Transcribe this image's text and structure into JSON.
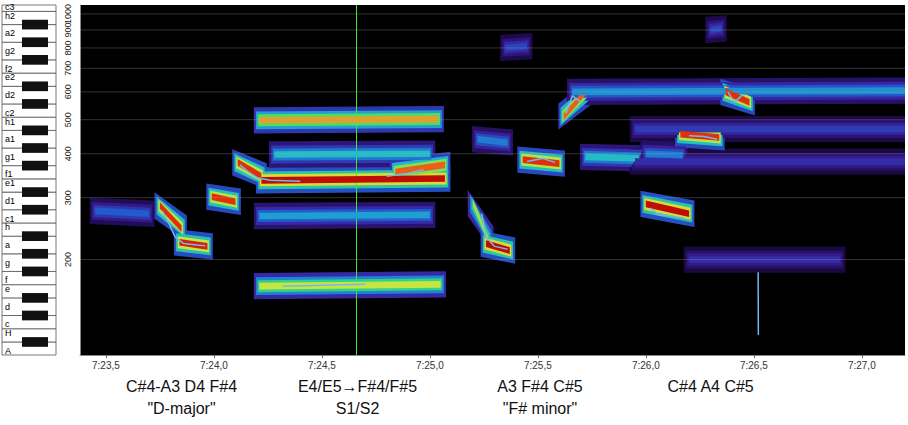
{
  "chart_data": {
    "type": "spectrogram",
    "log": "y",
    "grid": true,
    "xlim": [
      443.38,
      447.2
    ],
    "xticks": [
      {
        "value": 443.5,
        "label": "7:23,5"
      },
      {
        "value": 444.0,
        "label": "7:24,0"
      },
      {
        "value": 444.5,
        "label": "7:24,5"
      },
      {
        "value": 445.0,
        "label": "7:25,0"
      },
      {
        "value": 445.5,
        "label": "7:25,5"
      },
      {
        "value": 446.0,
        "label": "7:26,0"
      },
      {
        "value": 446.5,
        "label": "7:26,5"
      },
      {
        "value": 447.0,
        "label": "7:27,0"
      }
    ],
    "ylim": [
      107,
      1060
    ],
    "yticks": [
      200,
      300,
      400,
      500,
      600,
      700,
      800,
      900,
      1000
    ],
    "y2lim": [
      107,
      1060
    ],
    "y2ticks": [
      {
        "value": 110,
        "label": "A"
      },
      {
        "value": 123.47,
        "label": "H"
      },
      {
        "value": 130.81,
        "label": "c"
      },
      {
        "value": 146.83,
        "label": "d"
      },
      {
        "value": 164.81,
        "label": "e"
      },
      {
        "value": 174.61,
        "label": "f"
      },
      {
        "value": 196,
        "label": "g"
      },
      {
        "value": 220,
        "label": "a"
      },
      {
        "value": 246.94,
        "label": "h"
      },
      {
        "value": 261.63,
        "label": "c1"
      },
      {
        "value": 293.66,
        "label": "d1"
      },
      {
        "value": 329.63,
        "label": "e1"
      },
      {
        "value": 349.23,
        "label": "f1"
      },
      {
        "value": 392,
        "label": "g1"
      },
      {
        "value": 440,
        "label": "a1"
      },
      {
        "value": 493.88,
        "label": "h1"
      },
      {
        "value": 523.25,
        "label": "c2"
      },
      {
        "value": 587.33,
        "label": "d2"
      },
      {
        "value": 659.26,
        "label": "e2"
      },
      {
        "value": 698.46,
        "label": "f2"
      },
      {
        "value": 783.99,
        "label": "g2"
      },
      {
        "value": 880,
        "label": "a2"
      },
      {
        "value": 987.77,
        "label": "h2"
      },
      {
        "value": 1046.5,
        "label": "c3"
      }
    ],
    "zlim": [
      0,
      1
    ],
    "tones": [
      {
        "t": [
          443.45,
          443.7
        ],
        "f": [
          275,
          270
        ],
        "level": 0.4
      },
      {
        "t": [
          443.75,
          443.85
        ],
        "f": [
          285,
          245
        ],
        "level": 0.95
      },
      {
        "t": [
          443.84,
          443.97
        ],
        "f": [
          224,
          218
        ],
        "level": 0.97
      },
      {
        "t": [
          443.99,
          444.1
        ],
        "f": [
          302,
          292
        ],
        "level": 0.95
      },
      {
        "t": [
          444.11,
          444.22
        ],
        "f": [
          378,
          345
        ],
        "level": 0.95
      },
      {
        "t": [
          444.21,
          445.05
        ],
        "f": [
          168,
          170
        ],
        "level": 0.78
      },
      {
        "t": [
          444.21,
          445.0
        ],
        "f": [
          266,
          268
        ],
        "level": 0.5
      },
      {
        "t": [
          444.22,
          445.07
        ],
        "f": [
          336,
          340
        ],
        "level": 1.0
      },
      {
        "t": [
          444.28,
          445.0
        ],
        "f": [
          398,
          400
        ],
        "level": 0.55
      },
      {
        "t": [
          444.21,
          445.04
        ],
        "f": [
          498,
          502
        ],
        "level": 0.85
      },
      {
        "t": [
          444.84,
          445.07
        ],
        "f": [
          355,
          372
        ],
        "level": 0.9
      },
      {
        "t": [
          445.2,
          445.27
        ],
        "f": [
          290,
          228
        ],
        "level": 0.75
      },
      {
        "t": [
          445.26,
          445.37
        ],
        "f": [
          222,
          212
        ],
        "level": 1.0
      },
      {
        "t": [
          445.22,
          445.36
        ],
        "f": [
          440,
          430
        ],
        "level": 0.45
      },
      {
        "t": [
          445.43,
          445.6
        ],
        "f": [
          385,
          375
        ],
        "level": 0.95
      },
      {
        "t": [
          445.35,
          445.45
        ],
        "f": [
          800,
          810
        ],
        "level": 0.35
      },
      {
        "t": [
          445.62,
          445.72
        ],
        "f": [
          510,
          600
        ],
        "level": 0.9
      },
      {
        "t": [
          445.66,
          447.2
        ],
        "f": [
          600,
          605
        ],
        "level": 0.48
      },
      {
        "t": [
          445.72,
          445.97
        ],
        "f": [
          392,
          388
        ],
        "level": 0.55
      },
      {
        "t": [
          445.95,
          447.2
        ],
        "f": [
          470,
          470
        ],
        "level": 0.33
      },
      {
        "t": [
          445.95,
          447.2
        ],
        "f": [
          380,
          380
        ],
        "level": 0.3
      },
      {
        "t": [
          446.0,
          446.2
        ],
        "f": [
          288,
          270
        ],
        "level": 1.0
      },
      {
        "t": [
          446.0,
          446.17
        ],
        "f": [
          400,
          396
        ],
        "level": 0.45
      },
      {
        "t": [
          446.16,
          446.34
        ],
        "f": [
          455,
          445
        ],
        "level": 0.95
      },
      {
        "t": [
          446.3,
          446.35
        ],
        "f": [
          900,
          910
        ],
        "level": 0.35
      },
      {
        "t": [
          446.37,
          446.48
        ],
        "f": [
          600,
          560
        ],
        "level": 0.95
      },
      {
        "t": [
          446.2,
          446.9
        ],
        "f": [
          200,
          200
        ],
        "level": 0.3
      }
    ],
    "pitch_track": {
      "color": "#72b8f0",
      "x": [
        443.76,
        443.79,
        443.82,
        443.86,
        443.92,
        443.96,
        null,
        444.12,
        444.16,
        444.2,
        444.26,
        444.4,
        null,
        444.32,
        444.5,
        444.7,
        null,
        444.8,
        444.9,
        444.97,
        null,
        445.24,
        445.26,
        445.3,
        445.36,
        null,
        445.45,
        445.52,
        445.58,
        null,
        445.63,
        445.66,
        445.7,
        null,
        446.02,
        446.06,
        446.12,
        446.18,
        null,
        446.2,
        446.27,
        446.33,
        null,
        446.38,
        446.41,
        446.45,
        null,
        446.52,
        446.521
      ],
      "y": [
        275,
        255,
        232,
        222,
        220,
        219,
        null,
        372,
        355,
        342,
        336,
        334,
        null,
        168,
        169,
        170,
        null,
        345,
        352,
        360,
        null,
        270,
        232,
        218,
        214,
        null,
        380,
        388,
        378,
        null,
        520,
        585,
        560,
        null,
        280,
        268,
        266,
        262,
        null,
        450,
        448,
        440,
        null,
        600,
        560,
        590,
        null,
        184,
        122
      ]
    },
    "cursor": 444.66,
    "cursor_color": "#33ee33",
    "annotations": [
      {
        "x": 443.85,
        "text": [
          "C#4-A3 D4 F#4",
          "\"D-major\""
        ]
      },
      {
        "x": 444.665,
        "text": [
          "E4/E5→F#4/F#5",
          "S1/S2"
        ]
      },
      {
        "x": 445.51,
        "text": [
          "A3 F#4 C#5",
          "\"F# minor\""
        ]
      },
      {
        "x": 446.3,
        "text": [
          "C#4 A4 C#5"
        ]
      }
    ]
  }
}
